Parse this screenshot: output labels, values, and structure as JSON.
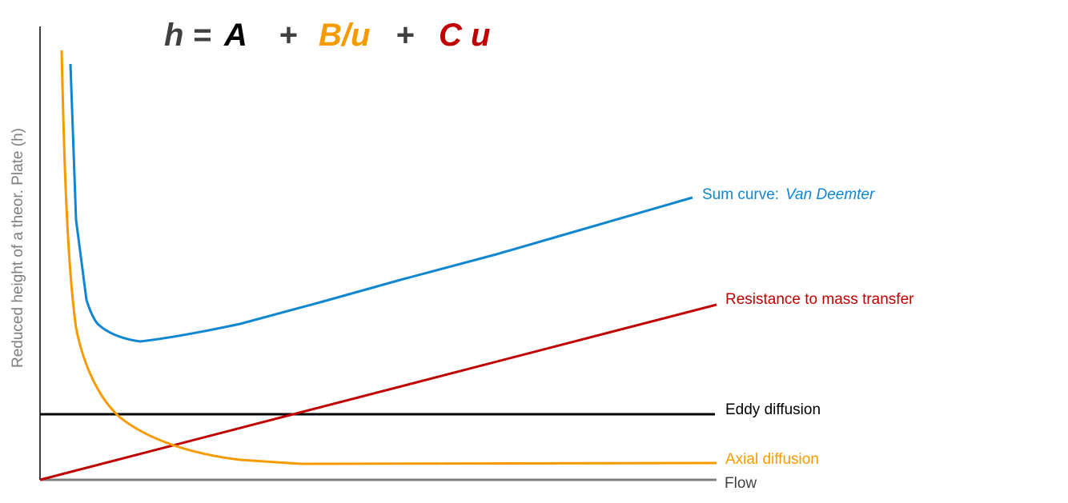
{
  "equation": {
    "h": "h =",
    "a": "A",
    "plus1": "+",
    "b": "B/u",
    "plus2": "+",
    "c": "C u"
  },
  "axes": {
    "y_label": "Reduced height of a theor. Plate (h)",
    "x_label": "Flow"
  },
  "curves": {
    "sum": {
      "label": "Sum curve:",
      "name": "Van Deemter"
    },
    "mass_transfer": {
      "label": "Resistance to mass transfer"
    },
    "eddy": {
      "label": "Eddy diffusion"
    },
    "axial": {
      "label": "Axial diffusion"
    }
  }
}
